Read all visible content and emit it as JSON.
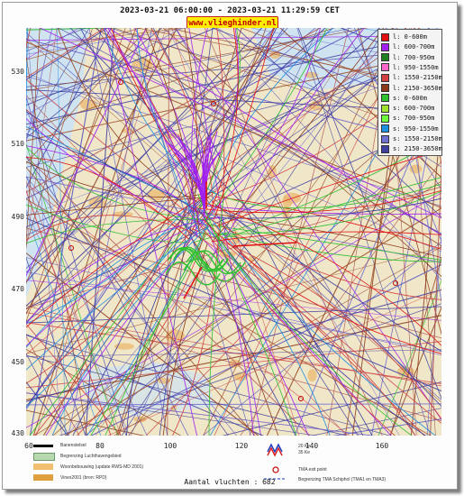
{
  "header": {
    "title": "2023-03-21 06:00:00 - 2023-03-21 11:29:59 CET",
    "logo_text": "www.vlieghinder.nl"
  },
  "axes": {
    "y_ticks": [
      "530",
      "510",
      "490",
      "470",
      "450",
      "430"
    ],
    "x_ticks": [
      "60",
      "80",
      "100",
      "120",
      "140",
      "160"
    ]
  },
  "legend": {
    "items": [
      {
        "label": "l: 0-600m",
        "color": "#e01010"
      },
      {
        "label": "l: 600-700m",
        "color": "#a020f0"
      },
      {
        "label": "l: 700-950m",
        "color": "#208020"
      },
      {
        "label": "l: 950-1550m",
        "color": "#ff66cc"
      },
      {
        "label": "l: 1550-2150m",
        "color": "#d04040"
      },
      {
        "label": "l: 2150-3650m",
        "color": "#8b3a1a"
      },
      {
        "label": "s: 0-600m",
        "color": "#30c030"
      },
      {
        "label": "s: 600-700m",
        "color": "#a0e030"
      },
      {
        "label": "s: 700-950m",
        "color": "#70ff40"
      },
      {
        "label": "s: 950-1550m",
        "color": "#2090e0"
      },
      {
        "label": "s: 1550-2150m",
        "color": "#7070d0"
      },
      {
        "label": "s: 2150-3650m",
        "color": "#4040a0"
      }
    ]
  },
  "map_legend": {
    "runway": "Banenstelsel",
    "airport_boundary": "Begrenzing Luchthavengebied",
    "housing": "Woonbebouwing (update RWS-MD 2001)",
    "vinex": "Vinex2001 (bron: RPD)",
    "noise_20": "20 Ke",
    "noise_35": "35 Ke",
    "tma_exit": "TMA exit point",
    "tma_boundary": "Begrenzing TMA Schiphol  (TMA1 en TMA3)"
  },
  "footer": {
    "count_text": "Aantal vluchten : 682"
  },
  "colors": {
    "land": "#f0e6c8",
    "water": "#cfe3f0",
    "town": "#e9b870",
    "accent_red": "#e01010",
    "purple": "#a020f0",
    "navy": "#3a3aa0",
    "brown": "#8b3a1a"
  }
}
